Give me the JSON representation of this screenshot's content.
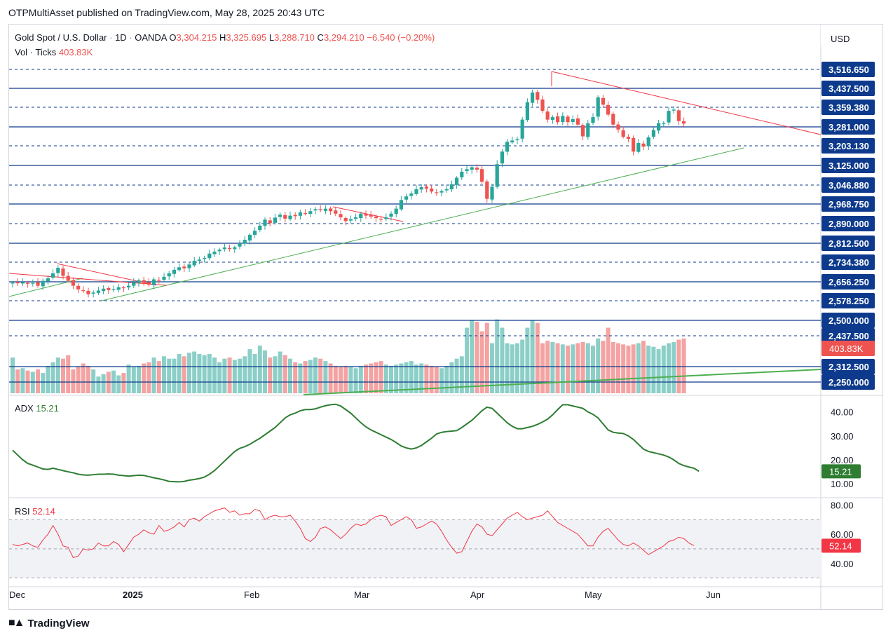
{
  "publisher_line": "OTPMultiAsset published on TradingView.com, May 28, 2025 20:43 UTC",
  "brand": "TradingView",
  "symbol": {
    "name": "Gold Spot / U.S. Dollar",
    "interval": "1D",
    "source": "OANDA",
    "o_label": "O",
    "o": "3,304.215",
    "h_label": "H",
    "h": "3,325.695",
    "l_label": "L",
    "l": "3,288.710",
    "c_label": "C",
    "c": "3,294.210",
    "change": "−6.540 (−0.20%)"
  },
  "volume_legend": {
    "label": "Vol · Ticks",
    "value": "403.83K"
  },
  "currency": "USD",
  "volume_badge": "403.83K",
  "adx": {
    "label": "ADX",
    "value": "15.21",
    "badge": "15.21",
    "ticks": [
      "40.00",
      "30.00",
      "20.00",
      "10.00"
    ]
  },
  "rsi": {
    "label": "RSI",
    "value": "52.14",
    "badge": "52.14",
    "ticks": [
      "80.00",
      "60.00",
      "40.00"
    ]
  },
  "colors": {
    "up": "#26a69a",
    "down": "#ef5350",
    "level_line": "#0d3a8c",
    "resistance": "#f23645",
    "support": "#4caf50",
    "adx": "#2e7d32",
    "rsi": "#f23645"
  },
  "chart_data": [
    {
      "type": "candlestick",
      "title": "Gold Spot / U.S. Dollar · 1D · OANDA",
      "x_ticks": [
        "Dec",
        "2025",
        "Feb",
        "Mar",
        "Apr",
        "May",
        "Jun"
      ],
      "price_levels": [
        "3,516.650",
        "3,437.500",
        "3,359.380",
        "3,281.000",
        "3,203.130",
        "3,125.000",
        "3,046.880",
        "2,968.750",
        "2,890.000",
        "2,812.500",
        "2,734.380",
        "2,656.250",
        "2,578.250",
        "2,500.000",
        "2,437.500",
        "2,312.500",
        "2,250.000"
      ],
      "price_level_values": [
        3516.65,
        3437.5,
        3359.38,
        3281,
        3203.13,
        3125,
        3046.88,
        2968.75,
        2890,
        2812.5,
        2734.38,
        2656.25,
        2578.25,
        2500,
        2437.5,
        2312.5,
        2250
      ],
      "solid_levels": [
        3437.5,
        3281,
        3125,
        2968.75,
        2812.5,
        2656.25,
        2500,
        2312.5,
        2250
      ],
      "closes": [
        2653,
        2650,
        2655,
        2648,
        2652,
        2640,
        2660,
        2670,
        2690,
        2712,
        2680,
        2660,
        2640,
        2625,
        2618,
        2605,
        2612,
        2620,
        2628,
        2622,
        2626,
        2634,
        2630,
        2640,
        2655,
        2662,
        2652,
        2644,
        2666,
        2662,
        2676,
        2690,
        2704,
        2714,
        2710,
        2725,
        2740,
        2745,
        2752,
        2770,
        2778,
        2786,
        2795,
        2790,
        2796,
        2810,
        2826,
        2846,
        2862,
        2882,
        2906,
        2892,
        2914,
        2926,
        2910,
        2922,
        2920,
        2935,
        2930,
        2940,
        2948,
        2944,
        2950,
        2940,
        2930,
        2915,
        2900,
        2908,
        2915,
        2930,
        2922,
        2918,
        2912,
        2908,
        2915,
        2930,
        2950,
        2985,
        3000,
        3012,
        3030,
        3038,
        3032,
        3020,
        3016,
        3022,
        3030,
        3050,
        3076,
        3100,
        3110,
        3118,
        3108,
        3060,
        2990,
        3040,
        3130,
        3180,
        3220,
        3225,
        3230,
        3310,
        3380,
        3420,
        3390,
        3345,
        3310,
        3320,
        3300,
        3325,
        3300,
        3312,
        3290,
        3242,
        3295,
        3320,
        3400,
        3370,
        3330,
        3290,
        3270,
        3240,
        3232,
        3180,
        3215,
        3200,
        3238,
        3268,
        3296,
        3296,
        3345,
        3350,
        3304,
        3294
      ],
      "volume": {
        "label": "Vol · Ticks",
        "last": "403.83K"
      },
      "annotations": [
        "descending resistance trendline from April high",
        "ascending support trendline from March",
        "horizontal price levels"
      ]
    },
    {
      "type": "line",
      "title": "ADX",
      "ylim": [
        8,
        44
      ],
      "ticks": [
        40,
        30,
        20,
        10
      ],
      "values": [
        24,
        22,
        20,
        18.5,
        17.8,
        17,
        16.2,
        16,
        16.5,
        16,
        15.5,
        15,
        14.6,
        14,
        13.7,
        13.6,
        13.8,
        14,
        14,
        14.1,
        14,
        13.6,
        13.4,
        13.2,
        13.4,
        13.6,
        13.5,
        13,
        12.5,
        12.1,
        11.6,
        11,
        10.9,
        10.8,
        11,
        11.5,
        11.8,
        12.2,
        12.8,
        14,
        15.5,
        17.5,
        19.5,
        21.5,
        23.5,
        24.8,
        25.5,
        26.5,
        27.8,
        29,
        30.5,
        32,
        33.5,
        35.5,
        37.5,
        38.8,
        39.5,
        40.5,
        41,
        41,
        41.3,
        42,
        42.6,
        43,
        43.2,
        42.5,
        41,
        39.5,
        37.5,
        35.5,
        33.8,
        32.5,
        31.5,
        30.5,
        29.5,
        28.5,
        27.2,
        25.8,
        25,
        24.5,
        25,
        26,
        27.5,
        29,
        30.8,
        31.5,
        31.8,
        32,
        32.2,
        33.5,
        35,
        36.5,
        38.5,
        40.5,
        42,
        41.5,
        39.5,
        37.5,
        35.5,
        34,
        33,
        33,
        33.5,
        34,
        34.8,
        35.8,
        37,
        38.8,
        41,
        43,
        43,
        42.5,
        42,
        41.5,
        40,
        39,
        37.5,
        35,
        32.5,
        31.5,
        31.2,
        31,
        30,
        28.5,
        26.5,
        24.5,
        23.5,
        23,
        22.5,
        22,
        21.2,
        20,
        18.5,
        17.6,
        17,
        16.5,
        15.21
      ]
    },
    {
      "type": "line",
      "title": "RSI",
      "ylim": [
        25,
        85
      ],
      "ticks": [
        80,
        60,
        40
      ],
      "values": [
        53,
        52,
        53,
        54,
        52,
        51,
        56,
        60,
        66,
        60,
        52,
        51,
        44,
        45,
        50,
        49,
        50,
        54,
        52,
        52,
        55,
        53,
        48,
        53,
        58,
        60,
        63,
        61,
        60,
        66,
        62,
        63,
        65,
        68,
        65,
        70,
        71,
        69,
        72,
        74,
        76,
        77,
        78,
        75,
        76,
        73,
        74,
        74,
        77,
        76,
        70,
        72,
        73,
        72,
        72,
        73,
        69,
        64,
        57,
        55,
        58,
        64,
        65,
        63,
        60,
        57,
        60,
        64,
        67,
        66,
        67,
        70,
        72,
        73,
        72,
        66,
        68,
        70,
        72,
        70,
        64,
        65,
        67,
        69,
        67,
        62,
        56,
        51,
        47,
        48,
        55,
        62,
        67,
        65,
        60,
        59,
        63,
        67,
        71,
        73,
        75,
        72,
        70,
        71,
        72,
        73,
        76,
        72,
        68,
        66,
        64,
        62,
        60,
        56,
        52,
        52,
        58,
        62,
        64,
        60,
        56,
        53,
        52,
        54,
        52,
        49,
        46,
        48,
        50,
        52,
        55,
        56,
        58,
        57,
        54,
        52.14
      ]
    }
  ]
}
